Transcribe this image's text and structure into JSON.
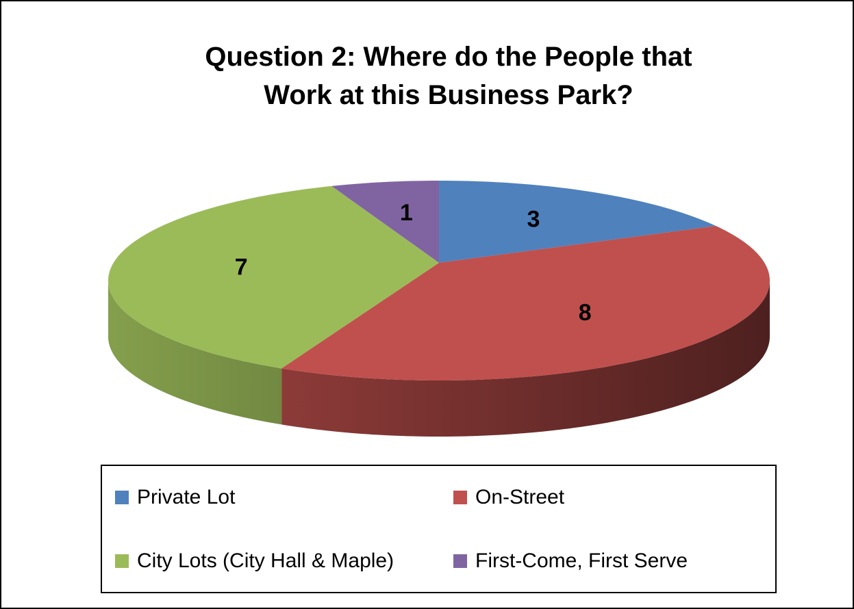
{
  "chart_data": {
    "type": "pie",
    "title": "Question 2: Where do the People that Work at this Business Park?",
    "categories": [
      "Private Lot",
      "On-Street",
      "City Lots (City Hall & Maple)",
      "First-Come, First Serve"
    ],
    "values": [
      3,
      8,
      7,
      1
    ],
    "colors": [
      "#4f81bd",
      "#c0504d",
      "#9bbb59",
      "#8064a2"
    ],
    "legend": "bottom"
  }
}
